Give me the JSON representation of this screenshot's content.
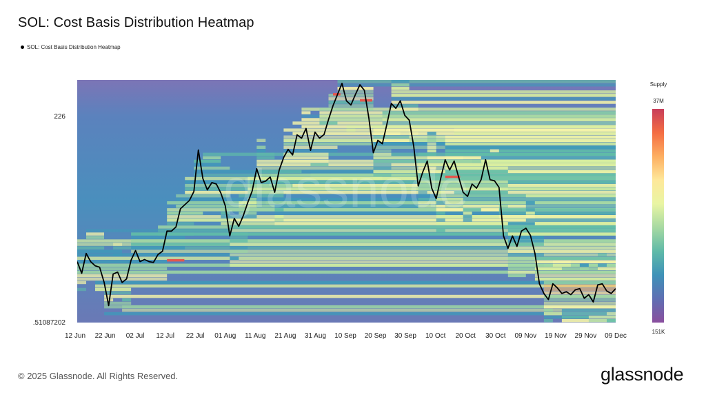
{
  "title": "SOL: Cost Basis Distribution Heatmap",
  "legend_label": "SOL: Cost Basis Distribution Heatmap",
  "footer": "© 2025 Glassnode. All Rights Reserved.",
  "brand": "glassnode",
  "watermark": "glassnode",
  "colorbar": {
    "title": "Supply",
    "max_label": "37M",
    "min_label": "151K",
    "colors": [
      "#8a4f9e",
      "#5f6fb3",
      "#3f92b8",
      "#5fbaa8",
      "#a6d9a2",
      "#e9f5a3",
      "#fee89a",
      "#fdae61",
      "#f46d43",
      "#c83e5a"
    ]
  },
  "line_color": "#000000",
  "chart_data": {
    "type": "heatmap",
    "title": "SOL: Cost Basis Distribution Heatmap",
    "y_ticks": [
      "226",
      ".51087202"
    ],
    "x_ticks": [
      "12 Jun",
      "22 Jun",
      "02 Jul",
      "12 Jul",
      "22 Jul",
      "01 Aug",
      "11 Aug",
      "21 Aug",
      "31 Aug",
      "10 Sep",
      "20 Sep",
      "30 Sep",
      "10 Oct",
      "20 Oct",
      "30 Oct",
      "09 Nov",
      "19 Nov",
      "29 Nov",
      "09 Dec"
    ],
    "x_range_days": [
      0,
      180
    ],
    "y_range_norm": [
      0,
      1
    ],
    "series": [
      {
        "name": "SOL: Cost Basis Distribution Heatmap",
        "type": "line",
        "points": [
          [
            0,
            0.251
          ],
          [
            1,
            0.203
          ],
          [
            2,
            0.285
          ],
          [
            3,
            0.251
          ],
          [
            4,
            0.234
          ],
          [
            5,
            0.228
          ],
          [
            6,
            0.165
          ],
          [
            7,
            0.07
          ],
          [
            8,
            0.2
          ],
          [
            9,
            0.208
          ],
          [
            10,
            0.165
          ],
          [
            11,
            0.18
          ],
          [
            12,
            0.257
          ],
          [
            13,
            0.297
          ],
          [
            14,
            0.251
          ],
          [
            15,
            0.26
          ],
          [
            16,
            0.251
          ],
          [
            17,
            0.248
          ],
          [
            18,
            0.28
          ],
          [
            19,
            0.294
          ],
          [
            20,
            0.377
          ],
          [
            21,
            0.377
          ],
          [
            22,
            0.394
          ],
          [
            23,
            0.469
          ],
          [
            24,
            0.486
          ],
          [
            25,
            0.503
          ],
          [
            26,
            0.54
          ],
          [
            27,
            0.711
          ],
          [
            28,
            0.594
          ],
          [
            29,
            0.547
          ],
          [
            30,
            0.577
          ],
          [
            31,
            0.571
          ],
          [
            32,
            0.534
          ],
          [
            33,
            0.481
          ],
          [
            34,
            0.357
          ],
          [
            35,
            0.429
          ],
          [
            36,
            0.397
          ],
          [
            37,
            0.44
          ],
          [
            38,
            0.494
          ],
          [
            39,
            0.543
          ],
          [
            40,
            0.634
          ],
          [
            41,
            0.577
          ],
          [
            42,
            0.583
          ],
          [
            43,
            0.6
          ],
          [
            44,
            0.537
          ],
          [
            45,
            0.628
          ],
          [
            46,
            0.68
          ],
          [
            47,
            0.714
          ],
          [
            48,
            0.691
          ],
          [
            49,
            0.774
          ],
          [
            50,
            0.76
          ],
          [
            51,
            0.8
          ],
          [
            52,
            0.71
          ],
          [
            53,
            0.785
          ],
          [
            54,
            0.76
          ],
          [
            55,
            0.775
          ],
          [
            56,
            0.837
          ],
          [
            57,
            0.894
          ],
          [
            58,
            0.94
          ],
          [
            59,
            0.986
          ],
          [
            60,
            0.914
          ],
          [
            61,
            0.897
          ],
          [
            62,
            0.94
          ],
          [
            63,
            0.98
          ],
          [
            64,
            0.957
          ],
          [
            65,
            0.843
          ],
          [
            66,
            0.7
          ],
          [
            67,
            0.751
          ],
          [
            68,
            0.737
          ],
          [
            69,
            0.817
          ],
          [
            70,
            0.903
          ],
          [
            71,
            0.883
          ],
          [
            72,
            0.914
          ],
          [
            73,
            0.854
          ],
          [
            74,
            0.834
          ],
          [
            75,
            0.726
          ],
          [
            76,
            0.563
          ],
          [
            77,
            0.62
          ],
          [
            78,
            0.666
          ],
          [
            79,
            0.554
          ],
          [
            80,
            0.511
          ],
          [
            81,
            0.594
          ],
          [
            82,
            0.671
          ],
          [
            83,
            0.629
          ],
          [
            84,
            0.666
          ],
          [
            85,
            0.6
          ],
          [
            86,
            0.537
          ],
          [
            87,
            0.52
          ],
          [
            88,
            0.571
          ],
          [
            89,
            0.554
          ],
          [
            90,
            0.589
          ],
          [
            91,
            0.671
          ],
          [
            92,
            0.589
          ],
          [
            93,
            0.584
          ],
          [
            94,
            0.557
          ],
          [
            95,
            0.357
          ],
          [
            96,
            0.306
          ],
          [
            97,
            0.357
          ],
          [
            98,
            0.314
          ],
          [
            99,
            0.377
          ],
          [
            100,
            0.389
          ],
          [
            101,
            0.36
          ],
          [
            102,
            0.285
          ],
          [
            103,
            0.16
          ],
          [
            104,
            0.12
          ],
          [
            105,
            0.095
          ],
          [
            106,
            0.16
          ],
          [
            107,
            0.143
          ],
          [
            108,
            0.12
          ],
          [
            109,
            0.127
          ],
          [
            110,
            0.115
          ],
          [
            111,
            0.135
          ],
          [
            112,
            0.14
          ],
          [
            113,
            0.1
          ],
          [
            114,
            0.115
          ],
          [
            115,
            0.085
          ],
          [
            116,
            0.155
          ],
          [
            117,
            0.16
          ],
          [
            118,
            0.13
          ],
          [
            119,
            0.12
          ],
          [
            120,
            0.14
          ]
        ]
      }
    ]
  }
}
